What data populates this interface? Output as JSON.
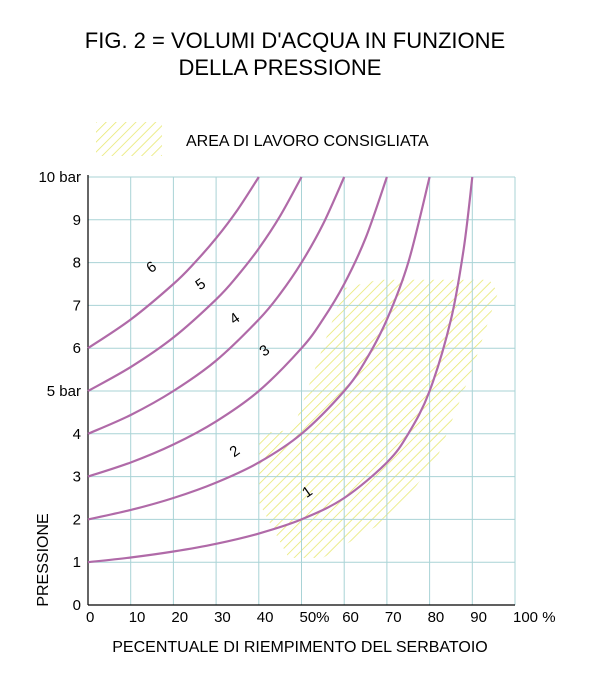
{
  "chart_data": {
    "type": "line",
    "title_line1": "FIG. 2  =  VOLUMI D'ACQUA IN FUNZIONE",
    "title_line2": "DELLA PRESSIONE",
    "legend_label": "AREA DI LAVORO CONSIGLIATA",
    "xlabel": "PECENTUALE DI RIEMPIMENTO DEL SERBATOIO",
    "ylabel": "PRESSIONE",
    "xlim": [
      0,
      100
    ],
    "ylim": [
      0,
      10
    ],
    "x_ticks": [
      "0",
      "10",
      "20",
      "30",
      "40",
      "50%",
      "60",
      "70",
      "80",
      "90",
      "100 %"
    ],
    "y_ticks": [
      "0",
      "1",
      "2",
      "3",
      "4",
      "5 bar",
      "6",
      "7",
      "8",
      "9",
      "10 bar"
    ],
    "grid": true,
    "line_color": "#b06aa8",
    "grid_color": "#a9d3d6",
    "hatch_color": "#e8e870",
    "recommended_area": [
      [
        40,
        4
      ],
      [
        48,
        4.1
      ],
      [
        60,
        7.4
      ],
      [
        68,
        7.6
      ],
      [
        80,
        7.6
      ],
      [
        94,
        7.6
      ],
      [
        96,
        7.3
      ],
      [
        90,
        5.5
      ],
      [
        82,
        3.5
      ],
      [
        72,
        2.1
      ],
      [
        55,
        1.1
      ],
      [
        47,
        1.1
      ],
      [
        40,
        2.4
      ]
    ],
    "series": [
      {
        "name": "1",
        "values": [
          [
            0,
            1.0
          ],
          [
            10,
            1.11
          ],
          [
            20,
            1.25
          ],
          [
            30,
            1.43
          ],
          [
            40,
            1.67
          ],
          [
            50,
            2.0
          ],
          [
            60,
            2.5
          ],
          [
            70,
            3.33
          ],
          [
            75,
            4.0
          ],
          [
            80,
            5.0
          ],
          [
            85,
            6.67
          ],
          [
            88,
            8.33
          ],
          [
            90,
            10.0
          ]
        ]
      },
      {
        "name": "2",
        "values": [
          [
            0,
            2.0
          ],
          [
            10,
            2.22
          ],
          [
            20,
            2.5
          ],
          [
            30,
            2.86
          ],
          [
            40,
            3.33
          ],
          [
            50,
            4.0
          ],
          [
            60,
            5.0
          ],
          [
            65,
            5.71
          ],
          [
            70,
            6.67
          ],
          [
            75,
            8.0
          ],
          [
            80,
            10.0
          ]
        ]
      },
      {
        "name": "3",
        "values": [
          [
            0,
            3.0
          ],
          [
            10,
            3.33
          ],
          [
            20,
            3.75
          ],
          [
            30,
            4.29
          ],
          [
            40,
            5.0
          ],
          [
            50,
            6.0
          ],
          [
            55,
            6.67
          ],
          [
            60,
            7.5
          ],
          [
            65,
            8.57
          ],
          [
            70,
            10.0
          ]
        ]
      },
      {
        "name": "4",
        "values": [
          [
            0,
            4.0
          ],
          [
            10,
            4.44
          ],
          [
            20,
            5.0
          ],
          [
            30,
            5.71
          ],
          [
            40,
            6.67
          ],
          [
            45,
            7.27
          ],
          [
            50,
            8.0
          ],
          [
            55,
            8.89
          ],
          [
            60,
            10.0
          ]
        ]
      },
      {
        "name": "5",
        "values": [
          [
            0,
            5.0
          ],
          [
            10,
            5.56
          ],
          [
            20,
            6.25
          ],
          [
            30,
            7.14
          ],
          [
            35,
            7.69
          ],
          [
            40,
            8.33
          ],
          [
            45,
            9.09
          ],
          [
            50,
            10.0
          ]
        ]
      },
      {
        "name": "6",
        "values": [
          [
            0,
            6.0
          ],
          [
            10,
            6.67
          ],
          [
            20,
            7.5
          ],
          [
            25,
            8.0
          ],
          [
            30,
            8.57
          ],
          [
            35,
            9.23
          ],
          [
            40,
            10.0
          ]
        ]
      }
    ],
    "curve_labels": [
      {
        "text": "1",
        "x": 52,
        "y": 2.55
      },
      {
        "text": "2",
        "x": 35,
        "y": 3.5
      },
      {
        "text": "3",
        "x": 42,
        "y": 5.85
      },
      {
        "text": "4",
        "x": 35,
        "y": 6.6
      },
      {
        "text": "5",
        "x": 27,
        "y": 7.4
      },
      {
        "text": "6",
        "x": 15.5,
        "y": 7.8
      }
    ]
  }
}
